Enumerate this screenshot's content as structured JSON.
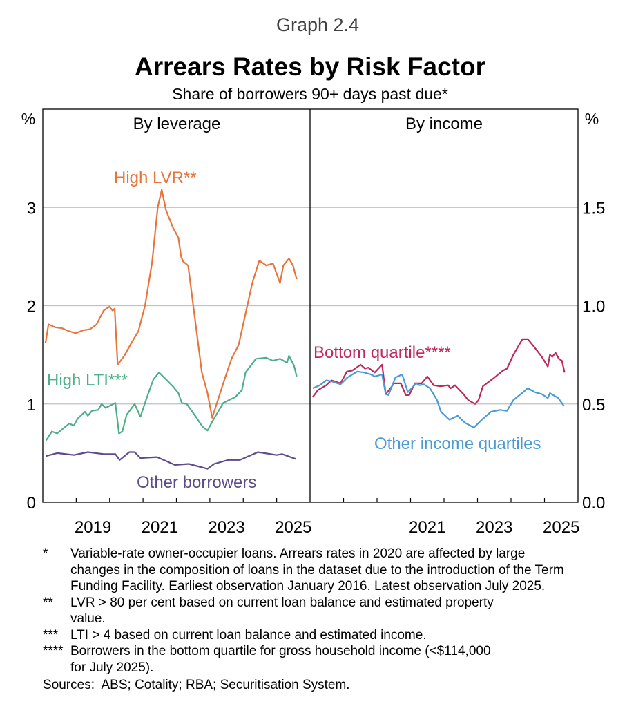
{
  "graph_number": "Graph 2.4",
  "chart_data": [
    {
      "type": "line",
      "panel": "By leverage",
      "title": "Arrears Rates by Risk Factor",
      "subtitle": "Share of borrowers 90+ days past due*",
      "ylabel": "%",
      "ylim": [
        0,
        4
      ],
      "yticks": [
        "0",
        "1",
        "2",
        "3"
      ],
      "xlim": [
        2018,
        2026
      ],
      "xticks": [
        "2019",
        "2021",
        "2023",
        "2025"
      ],
      "grid": true,
      "series": [
        {
          "name": "High LVR**",
          "color": "#E8743B",
          "points": [
            [
              2018.08,
              1.62
            ],
            [
              2018.17,
              1.81
            ],
            [
              2018.37,
              1.78
            ],
            [
              2018.58,
              1.77
            ],
            [
              2018.79,
              1.74
            ],
            [
              2018.99,
              1.72
            ],
            [
              2019.2,
              1.75
            ],
            [
              2019.41,
              1.76
            ],
            [
              2019.61,
              1.81
            ],
            [
              2019.82,
              1.95
            ],
            [
              2019.99,
              1.99
            ],
            [
              2020.09,
              1.95
            ],
            [
              2020.15,
              1.97
            ],
            [
              2020.24,
              1.4
            ],
            [
              2020.44,
              1.49
            ],
            [
              2020.65,
              1.62
            ],
            [
              2020.86,
              1.74
            ],
            [
              2021.06,
              2.0
            ],
            [
              2021.27,
              2.44
            ],
            [
              2021.44,
              3.0
            ],
            [
              2021.56,
              3.18
            ],
            [
              2021.69,
              2.97
            ],
            [
              2021.89,
              2.8
            ],
            [
              2022.06,
              2.69
            ],
            [
              2022.14,
              2.5
            ],
            [
              2022.2,
              2.45
            ],
            [
              2022.35,
              2.41
            ],
            [
              2022.55,
              1.88
            ],
            [
              2022.76,
              1.32
            ],
            [
              2022.93,
              1.11
            ],
            [
              2023.07,
              0.86
            ],
            [
              2023.24,
              1.04
            ],
            [
              2023.45,
              1.26
            ],
            [
              2023.65,
              1.46
            ],
            [
              2023.86,
              1.6
            ],
            [
              2024.07,
              1.92
            ],
            [
              2024.27,
              2.23
            ],
            [
              2024.48,
              2.46
            ],
            [
              2024.69,
              2.41
            ],
            [
              2024.89,
              2.43
            ],
            [
              2025.1,
              2.23
            ],
            [
              2025.2,
              2.41
            ],
            [
              2025.37,
              2.48
            ],
            [
              2025.49,
              2.41
            ],
            [
              2025.6,
              2.27
            ]
          ]
        },
        {
          "name": "High LTI***",
          "color": "#4DAF8A",
          "points": [
            [
              2018.1,
              0.63
            ],
            [
              2018.27,
              0.72
            ],
            [
              2018.43,
              0.7
            ],
            [
              2018.79,
              0.8
            ],
            [
              2018.93,
              0.78
            ],
            [
              2019.04,
              0.85
            ],
            [
              2019.26,
              0.92
            ],
            [
              2019.35,
              0.88
            ],
            [
              2019.47,
              0.93
            ],
            [
              2019.66,
              0.94
            ],
            [
              2019.76,
              1.0
            ],
            [
              2019.88,
              0.96
            ],
            [
              2020.17,
              1.01
            ],
            [
              2020.28,
              0.7
            ],
            [
              2020.38,
              0.72
            ],
            [
              2020.51,
              0.89
            ],
            [
              2020.75,
              1.0
            ],
            [
              2020.92,
              0.87
            ],
            [
              2021.13,
              1.08
            ],
            [
              2021.31,
              1.25
            ],
            [
              2021.48,
              1.32
            ],
            [
              2021.69,
              1.25
            ],
            [
              2021.89,
              1.18
            ],
            [
              2022.06,
              1.11
            ],
            [
              2022.16,
              1.01
            ],
            [
              2022.31,
              1.0
            ],
            [
              2022.58,
              0.87
            ],
            [
              2022.78,
              0.77
            ],
            [
              2022.93,
              0.73
            ],
            [
              2023.07,
              0.82
            ],
            [
              2023.4,
              1.01
            ],
            [
              2023.76,
              1.07
            ],
            [
              2023.96,
              1.14
            ],
            [
              2024.07,
              1.32
            ],
            [
              2024.38,
              1.46
            ],
            [
              2024.69,
              1.47
            ],
            [
              2024.89,
              1.44
            ],
            [
              2025.1,
              1.46
            ],
            [
              2025.31,
              1.42
            ],
            [
              2025.37,
              1.49
            ],
            [
              2025.52,
              1.39
            ],
            [
              2025.6,
              1.28
            ]
          ]
        },
        {
          "name": "Other borrowers",
          "color": "#5E4B8B",
          "points": [
            [
              2018.1,
              0.47
            ],
            [
              2018.43,
              0.5
            ],
            [
              2018.93,
              0.48
            ],
            [
              2019.35,
              0.51
            ],
            [
              2019.82,
              0.49
            ],
            [
              2020.17,
              0.49
            ],
            [
              2020.3,
              0.43
            ],
            [
              2020.59,
              0.51
            ],
            [
              2020.75,
              0.51
            ],
            [
              2020.92,
              0.45
            ],
            [
              2021.42,
              0.46
            ],
            [
              2021.95,
              0.38
            ],
            [
              2022.37,
              0.39
            ],
            [
              2022.93,
              0.34
            ],
            [
              2023.13,
              0.39
            ],
            [
              2023.55,
              0.43
            ],
            [
              2023.9,
              0.43
            ],
            [
              2024.44,
              0.51
            ],
            [
              2025.0,
              0.48
            ],
            [
              2025.16,
              0.49
            ],
            [
              2025.58,
              0.44
            ]
          ]
        }
      ]
    },
    {
      "type": "line",
      "panel": "By income",
      "ylabel": "%",
      "ylim": [
        0,
        2
      ],
      "yticks": [
        "0.0",
        "0.5",
        "1.0",
        "1.5"
      ],
      "xlim": [
        2018,
        2026
      ],
      "xticks": [
        "2021",
        "2023",
        "2025"
      ],
      "grid": true,
      "series": [
        {
          "name": "Bottom quartile****",
          "color": "#C0285A",
          "points": [
            [
              2018.08,
              0.535
            ],
            [
              2018.23,
              0.57
            ],
            [
              2018.48,
              0.595
            ],
            [
              2018.64,
              0.62
            ],
            [
              2018.91,
              0.605
            ],
            [
              2019.1,
              0.665
            ],
            [
              2019.26,
              0.67
            ],
            [
              2019.51,
              0.7
            ],
            [
              2019.64,
              0.68
            ],
            [
              2019.74,
              0.685
            ],
            [
              2019.93,
              0.66
            ],
            [
              2020.15,
              0.7
            ],
            [
              2020.26,
              0.55
            ],
            [
              2020.4,
              0.58
            ],
            [
              2020.51,
              0.605
            ],
            [
              2020.71,
              0.605
            ],
            [
              2020.86,
              0.545
            ],
            [
              2020.96,
              0.545
            ],
            [
              2021.13,
              0.605
            ],
            [
              2021.33,
              0.605
            ],
            [
              2021.5,
              0.64
            ],
            [
              2021.69,
              0.595
            ],
            [
              2021.89,
              0.59
            ],
            [
              2022.12,
              0.595
            ],
            [
              2022.2,
              0.58
            ],
            [
              2022.33,
              0.595
            ],
            [
              2022.58,
              0.55
            ],
            [
              2022.72,
              0.52
            ],
            [
              2022.93,
              0.5
            ],
            [
              2023.03,
              0.52
            ],
            [
              2023.16,
              0.59
            ],
            [
              2023.47,
              0.63
            ],
            [
              2023.76,
              0.67
            ],
            [
              2023.88,
              0.68
            ],
            [
              2024.07,
              0.75
            ],
            [
              2024.34,
              0.83
            ],
            [
              2024.5,
              0.83
            ],
            [
              2024.69,
              0.79
            ],
            [
              2024.92,
              0.74
            ],
            [
              2025.1,
              0.69
            ],
            [
              2025.16,
              0.75
            ],
            [
              2025.23,
              0.74
            ],
            [
              2025.33,
              0.76
            ],
            [
              2025.43,
              0.73
            ],
            [
              2025.52,
              0.72
            ],
            [
              2025.6,
              0.66
            ]
          ]
        },
        {
          "name": "Other income quartiles",
          "color": "#4A9AD4",
          "points": [
            [
              2018.08,
              0.58
            ],
            [
              2018.29,
              0.595
            ],
            [
              2018.48,
              0.62
            ],
            [
              2018.64,
              0.615
            ],
            [
              2018.91,
              0.6
            ],
            [
              2019.12,
              0.635
            ],
            [
              2019.41,
              0.665
            ],
            [
              2019.61,
              0.66
            ],
            [
              2019.82,
              0.65
            ],
            [
              2019.93,
              0.64
            ],
            [
              2020.15,
              0.65
            ],
            [
              2020.26,
              0.55
            ],
            [
              2020.34,
              0.545
            ],
            [
              2020.55,
              0.635
            ],
            [
              2020.75,
              0.65
            ],
            [
              2020.92,
              0.56
            ],
            [
              2021.17,
              0.605
            ],
            [
              2021.27,
              0.595
            ],
            [
              2021.4,
              0.6
            ],
            [
              2021.58,
              0.58
            ],
            [
              2021.79,
              0.52
            ],
            [
              2021.91,
              0.46
            ],
            [
              2022.16,
              0.42
            ],
            [
              2022.41,
              0.44
            ],
            [
              2022.62,
              0.405
            ],
            [
              2022.89,
              0.38
            ],
            [
              2023.13,
              0.42
            ],
            [
              2023.4,
              0.46
            ],
            [
              2023.67,
              0.47
            ],
            [
              2023.88,
              0.465
            ],
            [
              2024.07,
              0.52
            ],
            [
              2024.29,
              0.55
            ],
            [
              2024.5,
              0.58
            ],
            [
              2024.71,
              0.56
            ],
            [
              2024.92,
              0.55
            ],
            [
              2025.1,
              0.53
            ],
            [
              2025.16,
              0.555
            ],
            [
              2025.41,
              0.53
            ],
            [
              2025.58,
              0.49
            ]
          ]
        }
      ]
    }
  ],
  "footnotes": [
    {
      "mark": "*",
      "text": "Variable-rate owner-occupier loans. Arrears rates in 2020 are affected by large changes in the composition of loans in the dataset due to the introduction of the Term Funding Facility. Earliest observation January 2016. Latest observation July 2025."
    },
    {
      "mark": "**",
      "text": "LVR > 80 per cent based on current loan balance and estimated property value."
    },
    {
      "mark": "***",
      "text": "LTI > 4 based on current loan balance and estimated income."
    },
    {
      "mark": "****",
      "text": "Borrowers in the bottom quartile for gross household income (<$114,000 for July 2025)."
    }
  ],
  "sources": {
    "label": "Sources:",
    "text": "ABS; Cotality; RBA; Securitisation System."
  }
}
